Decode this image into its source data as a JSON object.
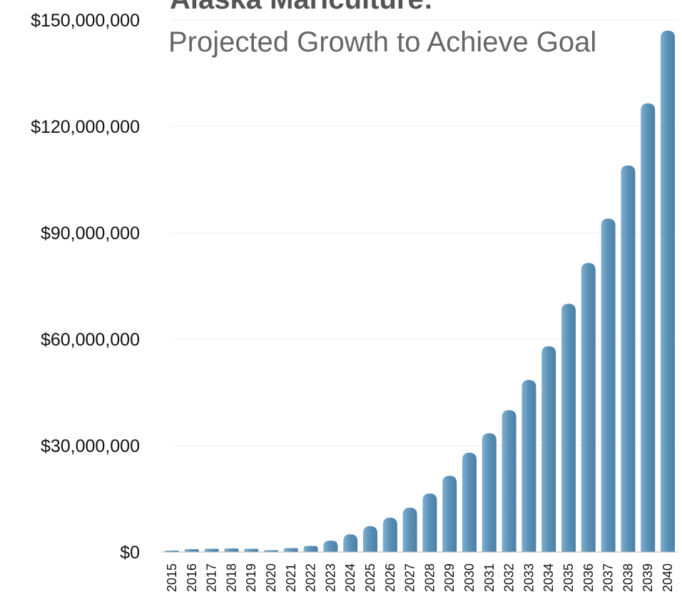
{
  "chart_data": {
    "type": "bar",
    "title": "Alaska Mariculture:",
    "subtitle": "Projected Growth to Achieve Goal",
    "xlabel": "",
    "ylabel": "",
    "categories": [
      "2015",
      "2016",
      "2017",
      "2018",
      "2019",
      "2020",
      "2021",
      "2022",
      "2023",
      "2024",
      "2025",
      "2026",
      "2027",
      "2028",
      "2029",
      "2030",
      "2031",
      "2032",
      "2033",
      "2034",
      "2035",
      "2036",
      "2037",
      "2038",
      "2039",
      "2040"
    ],
    "values": [
      300000,
      800000,
      900000,
      1000000,
      900000,
      500000,
      1100000,
      1700000,
      3200000,
      5000000,
      7300000,
      9700000,
      12500000,
      16500000,
      21500000,
      28000000,
      33500000,
      40000000,
      48500000,
      58000000,
      70000000,
      81500000,
      94000000,
      109000000,
      126500000,
      147000000
    ],
    "ylim": [
      0,
      150000000
    ],
    "yticks": [
      0,
      30000000,
      60000000,
      90000000,
      120000000,
      150000000
    ],
    "ytick_labels": [
      "$0",
      "$30,000,000",
      "$60,000,000",
      "$90,000,000",
      "$120,000,000",
      "$150,000,000"
    ],
    "grid": true,
    "bar_color": "#5d92b8",
    "bar_color_light": "#7fb0cf",
    "bar_color_dark": "#4a7fa6"
  }
}
